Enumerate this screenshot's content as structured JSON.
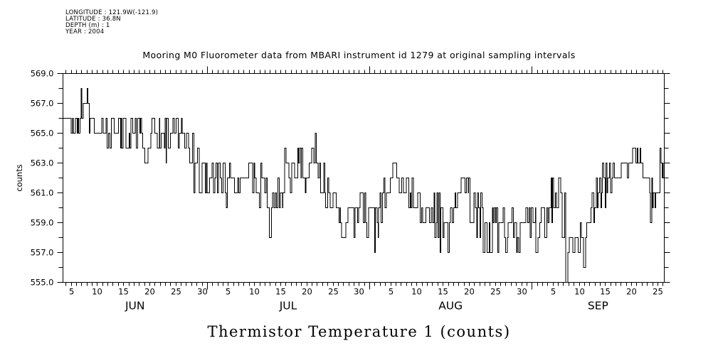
{
  "meta": {
    "lines": [
      "LONGITUDE : 121.9W(-121.9)",
      "LATITUDE : 36.8N",
      "DEPTH (m) : 1",
      "YEAR : 2004"
    ]
  },
  "chart_data": {
    "type": "line",
    "style": "step",
    "title": "Mooring M0 Fluorometer data from MBARI instrument id 1279 at original sampling intervals",
    "caption": "Thermistor Temperature 1 (counts)",
    "ylabel": "counts",
    "ylim": [
      555,
      569
    ],
    "ytick_minor_step": 1,
    "ytick_labels": [
      {
        "value": 569,
        "label": "569.0"
      },
      {
        "value": 567,
        "label": "567.0"
      },
      {
        "value": 565,
        "label": "565.0"
      },
      {
        "value": 563,
        "label": "563.0"
      },
      {
        "value": 561,
        "label": "561.0"
      },
      {
        "value": 559,
        "label": "559.0"
      },
      {
        "value": 557,
        "label": "557.0"
      },
      {
        "value": 555,
        "label": "555.0"
      }
    ],
    "x_axis": {
      "unit": "day-of-season (Jun 1 = 1)",
      "start": 3.5,
      "end": 118.3,
      "months": [
        {
          "label": "JUN",
          "start": 1,
          "days": 30
        },
        {
          "label": "JUL",
          "start": 31,
          "days": 31
        },
        {
          "label": "AUG",
          "start": 62,
          "days": 31
        },
        {
          "label": "SEP",
          "start": 93,
          "days": 30
        }
      ],
      "labeled_days": [
        5,
        10,
        15,
        20,
        25,
        30
      ]
    },
    "line_color": "#000000",
    "series": [
      {
        "name": "Thermistor Temperature 1",
        "point_format": [
          "month",
          "day",
          "min_counts",
          "max_counts",
          "typical_counts"
        ],
        "points": [
          [
            "JUN",
            4,
            563,
            566,
            565
          ],
          [
            "JUN",
            5,
            564,
            566,
            565
          ],
          [
            "JUN",
            6,
            564,
            567,
            565
          ],
          [
            "JUN",
            7,
            565,
            568,
            566
          ],
          [
            "JUN",
            8,
            565,
            568,
            567
          ],
          [
            "JUN",
            9,
            564,
            567,
            566
          ],
          [
            "JUN",
            10,
            564,
            566,
            565
          ],
          [
            "JUN",
            11,
            563,
            566,
            565
          ],
          [
            "JUN",
            12,
            564,
            566,
            565
          ],
          [
            "JUN",
            13,
            563,
            566,
            565
          ],
          [
            "JUN",
            14,
            564,
            566,
            565
          ],
          [
            "JUN",
            15,
            564,
            566,
            565
          ],
          [
            "JUN",
            16,
            563,
            566,
            565
          ],
          [
            "JUN",
            17,
            564,
            566,
            565
          ],
          [
            "JUN",
            18,
            564,
            566,
            565
          ],
          [
            "JUN",
            19,
            563,
            566,
            564
          ],
          [
            "JUN",
            20,
            563,
            565,
            564
          ],
          [
            "JUN",
            21,
            564,
            566,
            565
          ],
          [
            "JUN",
            22,
            564,
            566,
            565
          ],
          [
            "JUN",
            23,
            563,
            566,
            565
          ],
          [
            "JUN",
            24,
            564,
            566,
            565
          ],
          [
            "JUN",
            25,
            564,
            566,
            565
          ],
          [
            "JUN",
            26,
            563,
            566,
            564
          ],
          [
            "JUN",
            27,
            563,
            565,
            564
          ],
          [
            "JUN",
            28,
            562,
            565,
            564
          ],
          [
            "JUN",
            29,
            561,
            564,
            562
          ],
          [
            "JUN",
            30,
            561,
            563,
            562
          ],
          [
            "JUL",
            1,
            561,
            563,
            562
          ],
          [
            "JUL",
            2,
            561,
            564,
            562
          ],
          [
            "JUL",
            3,
            561,
            563,
            562
          ],
          [
            "JUL",
            4,
            561,
            563,
            562
          ],
          [
            "JUL",
            5,
            560,
            563,
            561
          ],
          [
            "JUL",
            6,
            560,
            562,
            561
          ],
          [
            "JUL",
            7,
            559,
            562,
            561
          ],
          [
            "JUL",
            8,
            560,
            562,
            561
          ],
          [
            "JUL",
            9,
            561,
            563,
            562
          ],
          [
            "JUL",
            10,
            561,
            563,
            562
          ],
          [
            "JUL",
            11,
            560,
            563,
            561
          ],
          [
            "JUL",
            12,
            559,
            562,
            561
          ],
          [
            "JUL",
            13,
            558,
            561,
            560
          ],
          [
            "JUL",
            14,
            559,
            562,
            561
          ],
          [
            "JUL",
            15,
            560,
            562,
            561
          ],
          [
            "JUL",
            16,
            560,
            564,
            562
          ],
          [
            "JUL",
            17,
            561,
            564,
            563
          ],
          [
            "JUL",
            18,
            562,
            564,
            563
          ],
          [
            "JUL",
            19,
            562,
            564,
            563
          ],
          [
            "JUL",
            20,
            561,
            564,
            562
          ],
          [
            "JUL",
            21,
            562,
            564,
            563
          ],
          [
            "JUL",
            22,
            562,
            565,
            563
          ],
          [
            "JUL",
            23,
            561,
            564,
            563
          ],
          [
            "JUL",
            24,
            560,
            563,
            561
          ],
          [
            "JUL",
            25,
            559,
            561,
            560
          ],
          [
            "JUL",
            26,
            559,
            561,
            560
          ],
          [
            "JUL",
            27,
            558,
            561,
            559
          ],
          [
            "JUL",
            28,
            559,
            561,
            560
          ],
          [
            "JUL",
            29,
            558,
            560,
            559
          ],
          [
            "JUL",
            30,
            559,
            561,
            560
          ],
          [
            "JUL",
            31,
            558,
            561,
            559
          ],
          [
            "AUG",
            1,
            558,
            560,
            559
          ],
          [
            "AUG",
            2,
            557,
            560,
            559
          ],
          [
            "AUG",
            3,
            558,
            561,
            559
          ],
          [
            "AUG",
            4,
            559,
            562,
            561
          ],
          [
            "AUG",
            5,
            560,
            563,
            561
          ],
          [
            "AUG",
            6,
            560,
            563,
            562
          ],
          [
            "AUG",
            7,
            560,
            562,
            561
          ],
          [
            "AUG",
            8,
            559,
            562,
            561
          ],
          [
            "AUG",
            9,
            560,
            562,
            561
          ],
          [
            "AUG",
            10,
            559,
            561,
            560
          ],
          [
            "AUG",
            11,
            559,
            561,
            560
          ],
          [
            "AUG",
            12,
            558,
            561,
            560
          ],
          [
            "AUG",
            13,
            559,
            561,
            560
          ],
          [
            "AUG",
            14,
            558,
            561,
            559
          ],
          [
            "AUG",
            15,
            557,
            560,
            559
          ],
          [
            "AUG",
            16,
            556,
            560,
            558
          ],
          [
            "AUG",
            17,
            559,
            561,
            560
          ],
          [
            "AUG",
            18,
            559,
            562,
            561
          ],
          [
            "AUG",
            19,
            560,
            562,
            561
          ],
          [
            "AUG",
            20,
            559,
            562,
            561
          ],
          [
            "AUG",
            21,
            559,
            561,
            560
          ],
          [
            "AUG",
            22,
            558,
            561,
            559
          ],
          [
            "AUG",
            23,
            557,
            560,
            558
          ],
          [
            "AUG",
            24,
            557,
            559,
            558
          ],
          [
            "AUG",
            25,
            558,
            560,
            559
          ],
          [
            "AUG",
            26,
            557,
            559,
            558
          ],
          [
            "AUG",
            27,
            557,
            560,
            558
          ],
          [
            "AUG",
            28,
            558,
            560,
            559
          ],
          [
            "AUG",
            29,
            557,
            559,
            558
          ],
          [
            "AUG",
            30,
            557,
            560,
            558
          ],
          [
            "AUG",
            31,
            557,
            560,
            559
          ],
          [
            "SEP",
            1,
            558,
            560,
            559
          ],
          [
            "SEP",
            2,
            557,
            560,
            558
          ],
          [
            "SEP",
            3,
            558,
            560,
            559
          ],
          [
            "SEP",
            4,
            558,
            561,
            559
          ],
          [
            "SEP",
            5,
            559,
            562,
            560
          ],
          [
            "SEP",
            6,
            560,
            563,
            561
          ],
          [
            "SEP",
            7,
            556,
            561,
            558
          ],
          [
            "SEP",
            8,
            555,
            558,
            556
          ],
          [
            "SEP",
            9,
            556,
            559,
            558
          ],
          [
            "SEP",
            10,
            556,
            559,
            557
          ],
          [
            "SEP",
            11,
            556,
            558,
            557
          ],
          [
            "SEP",
            12,
            557,
            560,
            559
          ],
          [
            "SEP",
            13,
            559,
            562,
            560
          ],
          [
            "SEP",
            14,
            560,
            562,
            561
          ],
          [
            "SEP",
            15,
            560,
            563,
            561
          ],
          [
            "SEP",
            16,
            560,
            563,
            562
          ],
          [
            "SEP",
            17,
            561,
            563,
            562
          ],
          [
            "SEP",
            18,
            562,
            564,
            563
          ],
          [
            "SEP",
            19,
            562,
            564,
            563
          ],
          [
            "SEP",
            20,
            562,
            564,
            563
          ],
          [
            "SEP",
            21,
            562,
            564,
            563
          ],
          [
            "SEP",
            22,
            561,
            564,
            562
          ],
          [
            "SEP",
            23,
            561,
            563,
            562
          ],
          [
            "SEP",
            24,
            559,
            562,
            561
          ],
          [
            "SEP",
            25,
            560,
            563,
            561
          ],
          [
            "SEP",
            26,
            561,
            564,
            562
          ]
        ]
      }
    ]
  }
}
